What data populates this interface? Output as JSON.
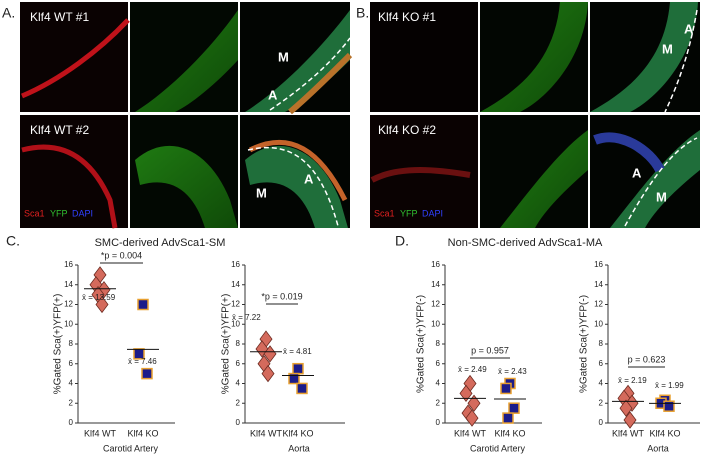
{
  "panels": {
    "a_label": "A.",
    "b_label": "B."
  },
  "images": [
    {
      "label": "Klf4 WT #1",
      "regions": [
        "M",
        "A"
      ]
    },
    {
      "label": "Klf4 WT #2",
      "regions": [
        "A",
        "M"
      ]
    },
    {
      "label": "Klf4 KO #1",
      "regions": [
        "A",
        "M"
      ]
    },
    {
      "label": "Klf4 KO #2",
      "regions": [
        "A",
        "M"
      ]
    }
  ],
  "channels": [
    "Sca1",
    "YFP",
    "DAPI"
  ],
  "sections": [
    {
      "label": "C.",
      "title": "SMC-derived AdvSca1-SM"
    },
    {
      "label": "D.",
      "title": "Non-SMC-derived AdvSca1-MA"
    }
  ],
  "chart_data": [
    {
      "type": "dotplot",
      "ylabel": "%Gated Sca(+)YFP(+)",
      "xlabel": "Carotid Artery",
      "categories": [
        "Klf4 WT",
        "Klf4 KO"
      ],
      "values": [
        [
          15,
          14,
          13.5,
          13,
          12
        ],
        [
          12,
          7,
          5
        ]
      ],
      "markers": [
        "diamond",
        "square"
      ],
      "colors": [
        "#d46a5c",
        "#1c1c8a"
      ],
      "means": [
        13.59,
        7.46
      ],
      "mean_labels": [
        "x̄ = 13.59",
        "x̄ = 7.46"
      ],
      "p_label": "*p = 0.004",
      "ylim": [
        0,
        16
      ],
      "yticks": [
        0,
        2,
        4,
        6,
        8,
        10,
        12,
        14,
        16
      ]
    },
    {
      "type": "dotplot",
      "ylabel": "%Gated Sca(+)YFP(+)",
      "xlabel": "Aorta",
      "categories": [
        "Klf4 WT",
        "Klf4 KO"
      ],
      "values": [
        [
          8.5,
          7.5,
          7,
          6,
          5
        ],
        [
          5.5,
          4.5,
          3.5
        ]
      ],
      "markers": [
        "diamond",
        "square"
      ],
      "colors": [
        "#d46a5c",
        "#1c1c8a"
      ],
      "means": [
        7.22,
        4.81
      ],
      "mean_labels": [
        "x̄ = 7.22",
        "x̄ = 4.81"
      ],
      "p_label": "*p = 0.019",
      "ylim": [
        0,
        16
      ],
      "yticks": [
        0,
        2,
        4,
        6,
        8,
        10,
        12,
        14,
        16
      ]
    },
    {
      "type": "dotplot",
      "ylabel": "%Gated Sca(+)YFP(-)",
      "xlabel": "Carotid Artery",
      "categories": [
        "Klf4 WT",
        "Klf4 KO"
      ],
      "values": [
        [
          4,
          3,
          2,
          1,
          0.5
        ],
        [
          4,
          3.5,
          1.5,
          0.5
        ]
      ],
      "markers": [
        "diamond",
        "square"
      ],
      "colors": [
        "#d46a5c",
        "#1c1c8a"
      ],
      "means": [
        2.49,
        2.43
      ],
      "mean_labels": [
        "x̄ = 2.49",
        "x̄ = 2.43"
      ],
      "p_label": "p = 0.957",
      "ylim": [
        0,
        16
      ],
      "yticks": [
        0,
        2,
        4,
        6,
        8,
        10,
        12,
        14,
        16
      ]
    },
    {
      "type": "dotplot",
      "ylabel": "%Gated Sca(+)YFP(-)",
      "xlabel": "Aorta",
      "categories": [
        "Klf4 WT",
        "Klf4 KO"
      ],
      "values": [
        [
          3,
          2.5,
          2,
          1.5,
          0.3
        ],
        [
          2.3,
          2,
          1.7
        ]
      ],
      "markers": [
        "diamond",
        "square"
      ],
      "colors": [
        "#d46a5c",
        "#1c1c8a"
      ],
      "means": [
        2.19,
        1.99
      ],
      "mean_labels": [
        "x̄ = 2.19",
        "x̄ = 1.99"
      ],
      "p_label": "p = 0.623",
      "ylim": [
        0,
        16
      ],
      "yticks": [
        0,
        2,
        4,
        6,
        8,
        10,
        12,
        14,
        16
      ]
    }
  ]
}
